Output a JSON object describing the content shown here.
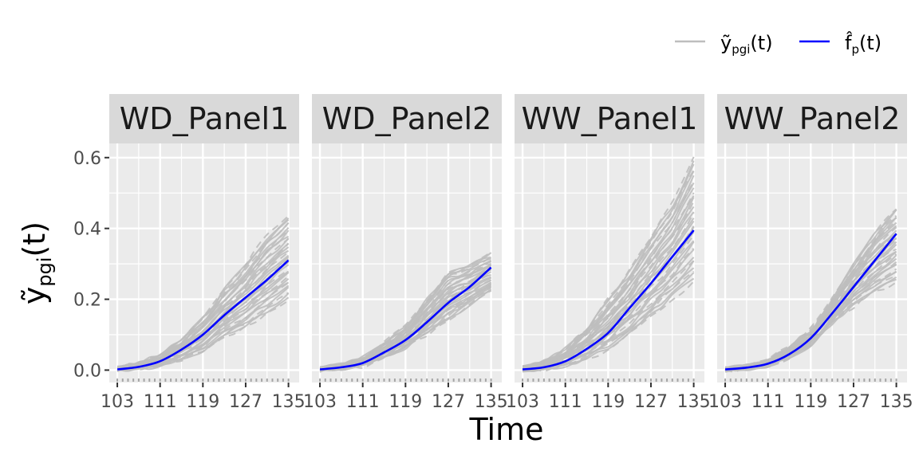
{
  "chart_data": {
    "type": "line",
    "xlabel": "Time",
    "ylabel": "ỹ",
    "ylabel_subscript": "pgi",
    "ylabel_suffix": "(t)",
    "x_ticks": [
      "103",
      "111",
      "119",
      "127",
      "135"
    ],
    "x_tick_values": [
      103,
      111,
      119,
      127,
      135
    ],
    "y_ticks": [
      "0.0",
      "0.2",
      "0.4",
      "0.6"
    ],
    "y_tick_values": [
      0,
      0.2,
      0.4,
      0.6
    ],
    "xlim": [
      101.5,
      137
    ],
    "ylim": [
      -0.035,
      0.64
    ],
    "legend": {
      "position": "top-right",
      "entries": [
        {
          "name": "ỹ",
          "subscript": "pgi",
          "suffix": "(t)",
          "color": "#bebebe"
        },
        {
          "name": "f̂",
          "subscript": "p",
          "suffix": "(t)",
          "color": "#0000ff"
        }
      ]
    },
    "colors": {
      "observed": "#bebebe",
      "fitted": "#0000ff",
      "panel_bg": "#ebebeb",
      "strip_bg": "#d9d9d9"
    },
    "panels": [
      {
        "name": "WD_Panel1",
        "fitted": {
          "x": [
            103,
            107,
            111,
            115,
            119,
            123,
            127,
            131,
            135
          ],
          "y": [
            0.002,
            0.009,
            0.025,
            0.058,
            0.1,
            0.155,
            0.205,
            0.255,
            0.31
          ]
        },
        "observed_band": {
          "x": [
            103,
            107,
            111,
            115,
            119,
            123,
            127,
            131,
            135
          ],
          "low": [
            0,
            0.003,
            0.01,
            0.03,
            0.05,
            0.09,
            0.12,
            0.16,
            0.2
          ],
          "high": [
            0.006,
            0.02,
            0.045,
            0.085,
            0.15,
            0.23,
            0.3,
            0.38,
            0.44
          ]
        }
      },
      {
        "name": "WD_Panel2",
        "fitted": {
          "x": [
            103,
            107,
            111,
            115,
            119,
            123,
            127,
            131,
            135
          ],
          "y": [
            0.002,
            0.008,
            0.02,
            0.05,
            0.085,
            0.135,
            0.19,
            0.235,
            0.29
          ]
        },
        "observed_band": {
          "x": [
            103,
            107,
            111,
            115,
            119,
            123,
            127,
            131,
            135
          ],
          "low": [
            0,
            0.004,
            0.012,
            0.035,
            0.06,
            0.1,
            0.14,
            0.18,
            0.22
          ],
          "high": [
            0.005,
            0.015,
            0.035,
            0.075,
            0.125,
            0.2,
            0.28,
            0.3,
            0.33
          ]
        }
      },
      {
        "name": "WW_Panel1",
        "fitted": {
          "x": [
            103,
            107,
            111,
            115,
            119,
            123,
            127,
            131,
            135
          ],
          "y": [
            0.002,
            0.008,
            0.025,
            0.06,
            0.105,
            0.175,
            0.245,
            0.32,
            0.395
          ]
        },
        "observed_band": {
          "x": [
            103,
            107,
            111,
            115,
            119,
            123,
            127,
            131,
            135
          ],
          "low": [
            0,
            0.003,
            0.01,
            0.03,
            0.06,
            0.1,
            0.15,
            0.2,
            0.25
          ],
          "high": [
            0.008,
            0.025,
            0.06,
            0.12,
            0.2,
            0.28,
            0.38,
            0.47,
            0.6
          ]
        }
      },
      {
        "name": "WW_Panel2",
        "fitted": {
          "x": [
            103,
            107,
            111,
            115,
            119,
            123,
            127,
            131,
            135
          ],
          "y": [
            0.002,
            0.007,
            0.018,
            0.045,
            0.09,
            0.16,
            0.235,
            0.31,
            0.385
          ]
        },
        "observed_band": {
          "x": [
            103,
            107,
            111,
            115,
            119,
            123,
            127,
            131,
            135
          ],
          "low": [
            0,
            0.004,
            0.012,
            0.035,
            0.07,
            0.13,
            0.18,
            0.22,
            0.25
          ],
          "high": [
            0.005,
            0.012,
            0.03,
            0.065,
            0.115,
            0.2,
            0.3,
            0.39,
            0.46
          ]
        }
      }
    ]
  }
}
